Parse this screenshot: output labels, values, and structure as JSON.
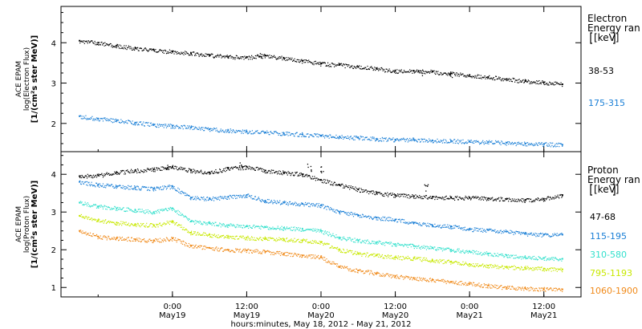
{
  "colors": {
    "black": "#000000",
    "blue": "#1a7fd6",
    "cyan": "#33e0cc",
    "yellow": "#c8e800",
    "orange": "#f08a1a"
  },
  "xaxis": {
    "label": "hours:minutes, May 18, 2012 - May 21, 2012",
    "range_hours": [
      0,
      84
    ],
    "ticks": [
      {
        "hour": 18,
        "time": "0:00",
        "date": "May19"
      },
      {
        "hour": 30,
        "time": "12:00",
        "date": "May19"
      },
      {
        "hour": 42,
        "time": "0:00",
        "date": "May20"
      },
      {
        "hour": 54,
        "time": "12:00",
        "date": "May20"
      },
      {
        "hour": 66,
        "time": "0:00",
        "date": "May21"
      },
      {
        "hour": 78,
        "time": "12:00",
        "date": "May21"
      }
    ]
  },
  "chart_data": [
    {
      "type": "scatter",
      "name": "electron",
      "ylabel_lines": [
        "ACE EPAM",
        "log(Electron Flux)",
        "[1/(cm²s ster MeV)]"
      ],
      "ylim": [
        1.3,
        4.9
      ],
      "yticks": [
        "2",
        "3",
        "4"
      ],
      "ytick_values": [
        2,
        3,
        4
      ],
      "legend": {
        "title_lines": [
          "Electron",
          "Energy ran",
          "[keV]"
        ],
        "placement": "right"
      },
      "series": [
        {
          "name": "38-53",
          "color": "black",
          "x": [
            3,
            6,
            9,
            12,
            15,
            18,
            21,
            24,
            27,
            30,
            33,
            36,
            39,
            42,
            45,
            48,
            51,
            54,
            57,
            60,
            63,
            66,
            69,
            72,
            75,
            78,
            81
          ],
          "y": [
            4.05,
            4.0,
            3.92,
            3.87,
            3.82,
            3.78,
            3.74,
            3.69,
            3.65,
            3.64,
            3.68,
            3.62,
            3.55,
            3.48,
            3.45,
            3.4,
            3.36,
            3.3,
            3.3,
            3.28,
            3.24,
            3.2,
            3.15,
            3.1,
            3.05,
            3.02,
            2.97
          ],
          "spikes": [
            {
              "x": 32,
              "y": 3.78
            },
            {
              "x": 58,
              "y": 3.38
            },
            {
              "x": 63,
              "y": 3.28
            }
          ]
        },
        {
          "name": "175-315",
          "color": "blue",
          "x": [
            3,
            6,
            9,
            12,
            15,
            18,
            21,
            24,
            27,
            30,
            33,
            36,
            39,
            42,
            45,
            48,
            51,
            54,
            57,
            60,
            63,
            66,
            69,
            72,
            75,
            78,
            81
          ],
          "y": [
            2.18,
            2.12,
            2.07,
            2.02,
            1.97,
            1.94,
            1.9,
            1.86,
            1.83,
            1.8,
            1.78,
            1.75,
            1.73,
            1.7,
            1.67,
            1.65,
            1.62,
            1.6,
            1.6,
            1.58,
            1.57,
            1.55,
            1.54,
            1.52,
            1.5,
            1.49,
            1.47
          ]
        }
      ]
    },
    {
      "type": "scatter",
      "name": "proton",
      "ylabel_lines": [
        "ACE EPAM",
        "log(Proton Flux)",
        "[1/(cm²s ster MeV)]"
      ],
      "ylim": [
        0.75,
        4.6
      ],
      "yticks": [
        "1",
        "2",
        "3",
        "4"
      ],
      "ytick_values": [
        1,
        2,
        3,
        4
      ],
      "legend": {
        "title_lines": [
          "Proton",
          "Energy ran",
          "[keV]"
        ],
        "placement": "right"
      },
      "series": [
        {
          "name": "47-68",
          "color": "black",
          "x": [
            3,
            6,
            9,
            12,
            15,
            18,
            21,
            24,
            27,
            30,
            33,
            36,
            39,
            42,
            45,
            48,
            51,
            54,
            57,
            60,
            63,
            66,
            69,
            72,
            75,
            78,
            81
          ],
          "y": [
            3.95,
            3.97,
            4.05,
            4.1,
            4.13,
            4.2,
            4.1,
            4.05,
            4.15,
            4.2,
            4.1,
            4.05,
            4.0,
            3.85,
            3.72,
            3.6,
            3.5,
            3.45,
            3.42,
            3.4,
            3.38,
            3.38,
            3.36,
            3.35,
            3.32,
            3.35,
            3.45
          ],
          "spikes": [
            {
              "x": 17,
              "y": 4.3
            },
            {
              "x": 29,
              "y": 4.32
            },
            {
              "x": 40,
              "y": 4.3
            },
            {
              "x": 42,
              "y": 4.25
            },
            {
              "x": 59,
              "y": 3.78
            }
          ]
        },
        {
          "name": "115-195",
          "color": "blue",
          "x": [
            3,
            6,
            9,
            12,
            15,
            18,
            21,
            24,
            27,
            30,
            33,
            36,
            39,
            42,
            45,
            48,
            51,
            54,
            57,
            60,
            63,
            66,
            69,
            72,
            75,
            78,
            81
          ],
          "y": [
            3.8,
            3.72,
            3.68,
            3.65,
            3.62,
            3.68,
            3.38,
            3.35,
            3.4,
            3.45,
            3.3,
            3.25,
            3.22,
            3.18,
            3.0,
            2.92,
            2.85,
            2.8,
            2.72,
            2.65,
            2.62,
            2.55,
            2.52,
            2.48,
            2.42,
            2.4,
            2.4
          ]
        },
        {
          "name": "310-580",
          "color": "cyan",
          "x": [
            3,
            6,
            9,
            12,
            15,
            18,
            21,
            24,
            27,
            30,
            33,
            36,
            39,
            42,
            45,
            48,
            51,
            54,
            57,
            60,
            63,
            66,
            69,
            72,
            75,
            78,
            81
          ],
          "y": [
            3.25,
            3.15,
            3.1,
            3.05,
            3.0,
            3.1,
            2.75,
            2.7,
            2.65,
            2.62,
            2.6,
            2.58,
            2.55,
            2.5,
            2.32,
            2.25,
            2.2,
            2.15,
            2.1,
            2.05,
            2.0,
            1.95,
            1.9,
            1.85,
            1.8,
            1.78,
            1.76
          ]
        },
        {
          "name": "795-1193",
          "color": "yellow",
          "x": [
            3,
            6,
            9,
            12,
            15,
            18,
            21,
            24,
            27,
            30,
            33,
            36,
            39,
            42,
            45,
            48,
            51,
            54,
            57,
            60,
            63,
            66,
            69,
            72,
            75,
            78,
            81
          ],
          "y": [
            2.9,
            2.78,
            2.72,
            2.68,
            2.65,
            2.75,
            2.45,
            2.4,
            2.35,
            2.32,
            2.3,
            2.28,
            2.25,
            2.2,
            2.0,
            1.9,
            1.85,
            1.8,
            1.78,
            1.72,
            1.68,
            1.62,
            1.58,
            1.55,
            1.52,
            1.5,
            1.48
          ]
        },
        {
          "name": "1060-1900",
          "color": "orange",
          "x": [
            3,
            6,
            9,
            12,
            15,
            18,
            21,
            24,
            27,
            30,
            33,
            36,
            39,
            42,
            45,
            48,
            51,
            54,
            57,
            60,
            63,
            66,
            69,
            72,
            75,
            78,
            81
          ],
          "y": [
            2.5,
            2.35,
            2.3,
            2.28,
            2.25,
            2.3,
            2.1,
            2.05,
            2.0,
            1.98,
            1.95,
            1.9,
            1.85,
            1.8,
            1.55,
            1.45,
            1.38,
            1.3,
            1.25,
            1.2,
            1.15,
            1.1,
            1.05,
            1.0,
            0.98,
            0.96,
            0.95
          ]
        }
      ]
    }
  ]
}
